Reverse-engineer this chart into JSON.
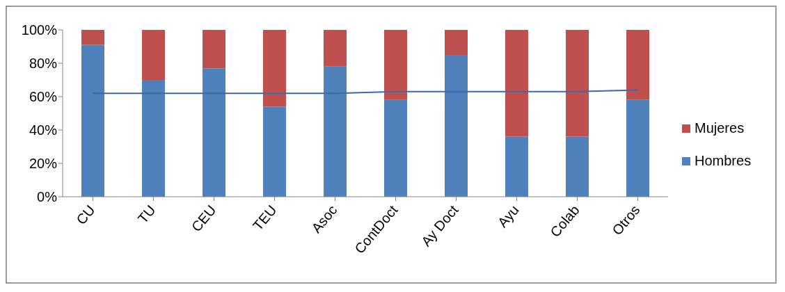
{
  "chart_data": {
    "type": "bar",
    "stacked": true,
    "categories": [
      "CU",
      "TU",
      "CEU",
      "TEU",
      "Asoc",
      "ContDoct",
      "Ay Doct",
      "Ayu",
      "Colab",
      "Otros"
    ],
    "series": [
      {
        "name": "Hombres",
        "color": "#4f81bd",
        "values": [
          91,
          70,
          77,
          54,
          78,
          58,
          85,
          36,
          36,
          58
        ]
      },
      {
        "name": "Mujeres",
        "color": "#c0504d",
        "values": [
          9,
          30,
          23,
          46,
          22,
          42,
          15,
          64,
          64,
          42
        ]
      },
      {
        "type": "line",
        "color": "#3a6aa8",
        "values": [
          62,
          62,
          62,
          62,
          62,
          63,
          63,
          63,
          63,
          64
        ]
      }
    ],
    "ylim": [
      0,
      100
    ],
    "yticks": [
      {
        "value": 0,
        "label": "0%"
      },
      {
        "value": 20,
        "label": "20%"
      },
      {
        "value": 40,
        "label": "40%"
      },
      {
        "value": 60,
        "label": "60%"
      },
      {
        "value": 80,
        "label": "80%"
      },
      {
        "value": 100,
        "label": "100%"
      }
    ],
    "grid": false,
    "legend": "right",
    "marker": "none"
  }
}
